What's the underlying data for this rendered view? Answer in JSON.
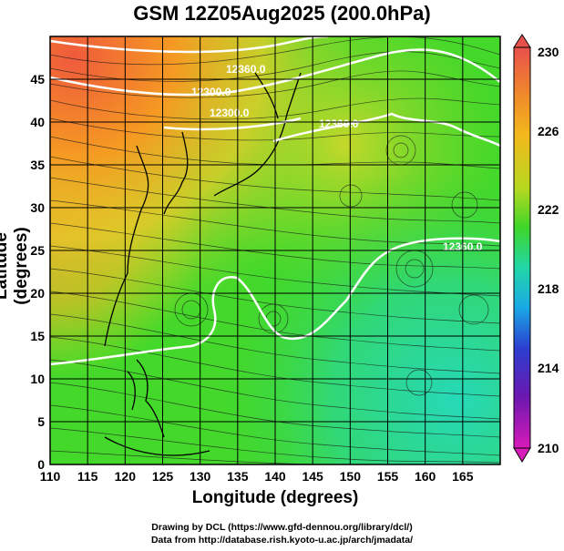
{
  "title": "GSM 12Z05Aug2025 (200.0hPa)",
  "map": {
    "x_label": "Longitude (degrees)",
    "y_label": "Latitude  (degrees)",
    "x_ticks": [
      "110",
      "115",
      "120",
      "125",
      "130",
      "135",
      "140",
      "145",
      "150",
      "155",
      "160",
      "165"
    ],
    "y_ticks": [
      "0",
      "5",
      "10",
      "15",
      "20",
      "25",
      "30",
      "35",
      "40",
      "45"
    ],
    "lon_range": [
      110,
      170
    ],
    "lat_range": [
      0,
      50
    ],
    "contour_labels": [
      "12360.0",
      "12300.0",
      "12300.0",
      "12360.0",
      "12360.0"
    ]
  },
  "colorbar": {
    "ticks": [
      "230",
      "226",
      "222",
      "218",
      "214",
      "210"
    ],
    "colors": [
      "#e8504b",
      "#f3a21c",
      "#c9d820",
      "#3ed62a",
      "#22d7a8",
      "#1aa8e6",
      "#2b3fd0",
      "#6a18b0",
      "#d81ab8"
    ]
  },
  "credits": {
    "line1": "Drawing by DCL (https://www.gfd-dennou.org/library/dcl/)",
    "line2": "Data from http://database.rish.kyoto-u.ac.jp/arch/jmadata/"
  }
}
